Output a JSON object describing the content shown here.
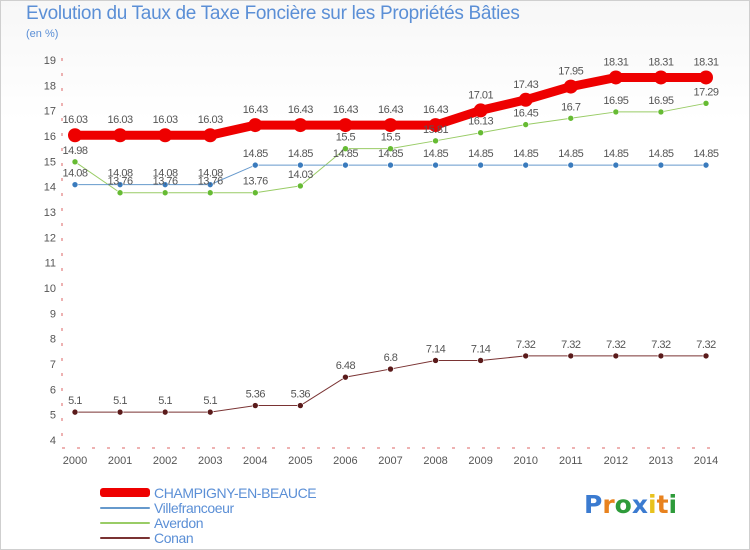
{
  "header": {
    "title": "Evolution du Taux de Taxe Foncière sur les Propriétés Bâties",
    "subtitle": "(en %)"
  },
  "logo": {
    "text": "Proxiti",
    "colors": [
      "#3b7bd0",
      "#e8821e",
      "#2e9b3a",
      "#3b7bd0",
      "#e8c21e",
      "#e8821e",
      "#2e9b3a"
    ]
  },
  "chart_data": {
    "type": "line",
    "title": "Evolution du Taux de Taxe Foncière sur les Propriétés Bâties",
    "ylabel": "(en %)",
    "xlabel": "",
    "ylim": [
      4,
      19
    ],
    "yticks": [
      4,
      5,
      6,
      7,
      8,
      9,
      10,
      11,
      12,
      13,
      14,
      15,
      16,
      17,
      18,
      19
    ],
    "x": [
      "2000",
      "2001",
      "2002",
      "2003",
      "2004",
      "2005",
      "2006",
      "2007",
      "2008",
      "2009",
      "2010",
      "2011",
      "2012",
      "2013",
      "2014"
    ],
    "grid": false,
    "legend_position": "bottom-left",
    "series": [
      {
        "name": "CHAMPIGNY-EN-BEAUCE",
        "color": "#ee0000",
        "marker_color": "#ee0000",
        "width": 9,
        "values": [
          16.03,
          16.03,
          16.03,
          16.03,
          16.43,
          16.43,
          16.43,
          16.43,
          16.43,
          17.01,
          17.43,
          17.95,
          18.31,
          18.31,
          18.31
        ],
        "labels": [
          "16.03",
          "16.03",
          "16.03",
          "16.03",
          "16.43",
          "16.43",
          "16.43",
          "16.43",
          "16.43",
          "17.01",
          "17.43",
          "17.95",
          "18.31",
          "18.31",
          "18.31"
        ]
      },
      {
        "name": "Villefrancoeur",
        "color": "#6699cc",
        "marker_color": "#3a7bbd",
        "width": 1,
        "values": [
          14.08,
          14.08,
          14.08,
          14.08,
          14.85,
          14.85,
          14.85,
          14.85,
          14.85,
          14.85,
          14.85,
          14.85,
          14.85,
          14.85,
          14.85
        ],
        "labels": [
          "14.08",
          "14.08",
          "14.08",
          "14.08",
          "14.85",
          "14.85",
          "14.85",
          "14.85",
          "14.85",
          "14.85",
          "14.85",
          "14.85",
          "14.85",
          "14.85",
          "14.85"
        ]
      },
      {
        "name": "Averdon",
        "color": "#99cc66",
        "marker_color": "#66bb33",
        "width": 1,
        "values": [
          14.98,
          13.76,
          13.76,
          13.76,
          13.76,
          14.03,
          15.5,
          15.5,
          15.81,
          16.13,
          16.45,
          16.7,
          16.95,
          16.95,
          17.29
        ],
        "labels": [
          "14.98",
          "13.76",
          "13.76",
          "13.76",
          "13.76",
          "14.03",
          "15.5",
          "15.5",
          "15.81",
          "16.13",
          "16.45",
          "16.7",
          "16.95",
          "16.95",
          "17.29"
        ]
      },
      {
        "name": "Conan",
        "color": "#7a3333",
        "marker_color": "#5a1a1a",
        "width": 1,
        "values": [
          5.1,
          5.1,
          5.1,
          5.1,
          5.36,
          5.36,
          6.48,
          6.8,
          7.14,
          7.14,
          7.32,
          7.32,
          7.32,
          7.32,
          7.32
        ],
        "labels": [
          "5.1",
          "5.1",
          "5.1",
          "5.1",
          "5.36",
          "5.36",
          "6.48",
          "6.8",
          "7.14",
          "7.14",
          "7.32",
          "7.32",
          "7.32",
          "7.32",
          "7.32"
        ]
      }
    ]
  }
}
